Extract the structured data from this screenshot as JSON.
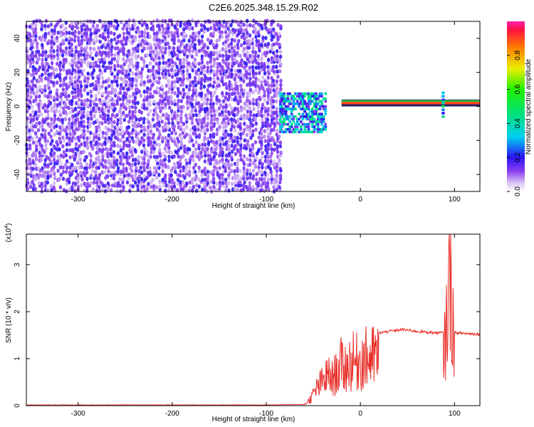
{
  "title": "C2E6.2025.348.15.29.R02",
  "chart_data": [
    {
      "type": "heatmap",
      "xlabel": "Height of straight line (km)",
      "ylabel": "Frequency (Hz)",
      "xlim": [
        -355,
        127
      ],
      "ylim": [
        -50,
        50
      ],
      "xticks": [
        "-300",
        "-200",
        "-100",
        "0",
        "100"
      ],
      "xtick_values": [
        -300,
        -200,
        -100,
        0,
        100
      ],
      "yticks": [
        "-40",
        "-20",
        "0",
        "20",
        "40"
      ],
      "ytick_values": [
        -40,
        -20,
        0,
        20,
        40
      ],
      "colorbar": {
        "label": "Normalized spectral amplitude",
        "ticks": [
          "0.0",
          "0.2",
          "0.4",
          "0.6",
          "0.8"
        ],
        "tick_values": [
          0.0,
          0.2,
          0.4,
          0.6,
          0.8
        ],
        "range": [
          0,
          1
        ]
      },
      "features": {
        "noise_region_x": [
          -355,
          -85
        ],
        "noise_level": 0.18,
        "signal_line_freq_hz": 2,
        "signal_line_x": [
          -20,
          127
        ],
        "signal_line_level": 0.9,
        "transition_blob_x": [
          -85,
          -35
        ],
        "transition_blob_freq": [
          -15,
          8
        ],
        "spike_x": 88
      }
    },
    {
      "type": "line",
      "xlabel": "Height of straight line (km)",
      "ylabel": "SNR (10 * v/v)",
      "y_multiplier": "(x10",
      "y_multiplier_exp": "4",
      "xlim": [
        -355,
        127
      ],
      "ylim": [
        0,
        3.65
      ],
      "xticks": [
        "-300",
        "-200",
        "-100",
        "0",
        "100"
      ],
      "xtick_values": [
        -300,
        -200,
        -100,
        0,
        100
      ],
      "yticks": [
        "0",
        "1",
        "2",
        "3"
      ],
      "ytick_values": [
        0,
        1,
        2,
        3
      ],
      "series": [
        {
          "color": "#e8302a",
          "envelope": [
            [
              -355,
              0.01
            ],
            [
              -100,
              0.01
            ],
            [
              -60,
              0.02
            ],
            [
              -55,
              0.15
            ],
            [
              -50,
              0.35
            ],
            [
              -45,
              0.6
            ],
            [
              -40,
              0.75
            ],
            [
              -35,
              0.95
            ],
            [
              -30,
              0.85
            ],
            [
              -25,
              1.05
            ],
            [
              -20,
              1.3
            ],
            [
              -15,
              1.2
            ],
            [
              -10,
              1.4
            ],
            [
              -5,
              1.35
            ],
            [
              0,
              1.45
            ],
            [
              10,
              1.5
            ],
            [
              20,
              1.55
            ],
            [
              30,
              1.58
            ],
            [
              45,
              1.62
            ],
            [
              60,
              1.58
            ],
            [
              80,
              1.55
            ],
            [
              90,
              1.55
            ],
            [
              95,
              3.65
            ],
            [
              100,
              1.55
            ],
            [
              127,
              1.52
            ]
          ]
        }
      ]
    }
  ]
}
